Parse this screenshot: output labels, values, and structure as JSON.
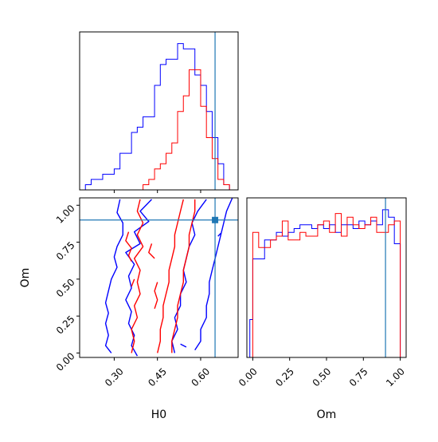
{
  "chart_data": {
    "type": "corner",
    "colors": {
      "series_a": "#0000ff",
      "series_b": "#ff0000",
      "truth": "#1f77b4"
    },
    "parameters": [
      "H0",
      "Om"
    ],
    "truth": {
      "H0": 0.65,
      "Om": 0.9
    },
    "panels": [
      {
        "id": "h0_hist",
        "type": "step-histogram",
        "xlim": [
          0.18,
          0.73
        ],
        "xticks": [
          0.3,
          0.45,
          0.6
        ],
        "truth_vline": 0.65,
        "bins": [
          0.18,
          0.2,
          0.22,
          0.24,
          0.26,
          0.28,
          0.3,
          0.32,
          0.34,
          0.36,
          0.38,
          0.4,
          0.42,
          0.44,
          0.46,
          0.48,
          0.5,
          0.52,
          0.54,
          0.56,
          0.58,
          0.6,
          0.62,
          0.64,
          0.66,
          0.68,
          0.7,
          0.72
        ],
        "series": [
          {
            "color": "blue",
            "counts": [
              0,
              1,
              2,
              2,
              3,
              3,
              4,
              7,
              7,
              11,
              12,
              14,
              14,
              20,
              24,
              25,
              25,
              28,
              27,
              27,
              22,
              20,
              15,
              10,
              5,
              1,
              0
            ]
          },
          {
            "color": "red",
            "counts": [
              0,
              0,
              0,
              0,
              0,
              0,
              0,
              0,
              0,
              0,
              0,
              1,
              2,
              4,
              5,
              7,
              9,
              15,
              18,
              23,
              23,
              16,
              10,
              6,
              2,
              1,
              0
            ]
          }
        ]
      },
      {
        "id": "om_hist",
        "type": "step-histogram",
        "xlim": [
          -0.04,
          1.04
        ],
        "xticks": [
          0.0,
          0.25,
          0.5,
          0.75,
          1.0
        ],
        "xtick_labels": [
          "0.00",
          "0.25",
          "0.50",
          "0.75",
          "1.00"
        ],
        "xlabel": "Om",
        "truth_vline": 0.9,
        "bins": [
          -0.04,
          -0.02,
          0.0,
          0.04,
          0.08,
          0.12,
          0.16,
          0.2,
          0.24,
          0.28,
          0.32,
          0.36,
          0.4,
          0.44,
          0.48,
          0.52,
          0.56,
          0.6,
          0.64,
          0.68,
          0.72,
          0.76,
          0.8,
          0.84,
          0.88,
          0.92,
          0.96,
          1.0,
          1.04
        ],
        "series": [
          {
            "color": "blue",
            "counts": [
              0,
              10,
              26,
              26,
              31,
              31,
              33,
              32,
              33,
              34,
              35,
              35,
              34,
              35,
              34,
              35,
              33,
              35,
              35,
              34,
              36,
              35,
              36,
              35,
              39,
              37,
              30,
              0
            ]
          },
          {
            "color": "red",
            "counts": [
              0,
              0,
              33,
              29,
              29,
              31,
              32,
              36,
              31,
              31,
              33,
              32,
              32,
              35,
              36,
              33,
              38,
              32,
              37,
              35,
              34,
              35,
              37,
              33,
              33,
              35,
              36,
              0
            ]
          }
        ]
      },
      {
        "id": "h0_om_contours",
        "type": "2d-contour",
        "xlim": [
          0.18,
          0.73
        ],
        "ylim": [
          -0.03,
          1.05
        ],
        "xticks": [
          0.3,
          0.45,
          0.6
        ],
        "xtick_labels": [
          "0.30",
          "0.45",
          "0.60"
        ],
        "yticks": [
          0.0,
          0.25,
          0.5,
          0.75,
          1.0
        ],
        "ytick_labels": [
          "0.00",
          "0.25",
          "0.50",
          "0.75",
          "1.00"
        ],
        "xlabel": "H0",
        "ylabel": "Om",
        "truth_point": [
          0.65,
          0.9
        ],
        "contours": [
          {
            "color": "blue",
            "points": [
              [
                0.32,
                1.04
              ],
              [
                0.31,
                0.95
              ],
              [
                0.33,
                0.88
              ],
              [
                0.33,
                0.8
              ],
              [
                0.31,
                0.72
              ],
              [
                0.3,
                0.65
              ],
              [
                0.31,
                0.58
              ],
              [
                0.29,
                0.5
              ],
              [
                0.28,
                0.42
              ],
              [
                0.27,
                0.34
              ],
              [
                0.28,
                0.27
              ],
              [
                0.27,
                0.2
              ],
              [
                0.28,
                0.12
              ],
              [
                0.27,
                0.05
              ],
              [
                0.29,
                0.0
              ]
            ]
          },
          {
            "color": "blue",
            "points": [
              [
                0.43,
                1.04
              ],
              [
                0.39,
                0.96
              ],
              [
                0.42,
                0.89
              ],
              [
                0.37,
                0.82
              ],
              [
                0.39,
                0.74
              ],
              [
                0.34,
                0.68
              ],
              [
                0.37,
                0.6
              ],
              [
                0.35,
                0.52
              ],
              [
                0.36,
                0.44
              ],
              [
                0.34,
                0.36
              ],
              [
                0.36,
                0.28
              ],
              [
                0.35,
                0.2
              ],
              [
                0.37,
                0.12
              ],
              [
                0.36,
                0.05
              ],
              [
                0.38,
                -0.02
              ]
            ]
          },
          {
            "color": "blue",
            "points": [
              [
                0.62,
                1.04
              ],
              [
                0.59,
                0.96
              ],
              [
                0.57,
                0.88
              ],
              [
                0.58,
                0.8
              ],
              [
                0.56,
                0.72
              ],
              [
                0.55,
                0.64
              ],
              [
                0.54,
                0.56
              ],
              [
                0.55,
                0.48
              ],
              [
                0.53,
                0.4
              ],
              [
                0.53,
                0.32
              ],
              [
                0.51,
                0.24
              ],
              [
                0.52,
                0.16
              ],
              [
                0.5,
                0.08
              ],
              [
                0.51,
                0.0
              ]
            ]
          },
          {
            "color": "blue",
            "points": [
              [
                0.71,
                1.05
              ],
              [
                0.69,
                0.96
              ],
              [
                0.68,
                0.88
              ],
              [
                0.67,
                0.8
              ],
              [
                0.66,
                0.72
              ],
              [
                0.65,
                0.64
              ],
              [
                0.64,
                0.56
              ],
              [
                0.63,
                0.48
              ],
              [
                0.63,
                0.4
              ],
              [
                0.62,
                0.32
              ],
              [
                0.62,
                0.24
              ],
              [
                0.6,
                0.16
              ],
              [
                0.6,
                0.08
              ],
              [
                0.58,
                0.02
              ]
            ]
          },
          {
            "color": "red",
            "points": [
              [
                0.39,
                1.04
              ],
              [
                0.38,
                0.96
              ],
              [
                0.4,
                0.88
              ],
              [
                0.38,
                0.8
              ],
              [
                0.4,
                0.72
              ],
              [
                0.37,
                0.64
              ],
              [
                0.39,
                0.56
              ],
              [
                0.38,
                0.48
              ],
              [
                0.39,
                0.4
              ],
              [
                0.37,
                0.32
              ],
              [
                0.38,
                0.24
              ],
              [
                0.36,
                0.16
              ],
              [
                0.37,
                0.08
              ],
              [
                0.36,
                0.0
              ]
            ]
          },
          {
            "color": "red",
            "points": [
              [
                0.54,
                1.04
              ],
              [
                0.53,
                0.96
              ],
              [
                0.52,
                0.88
              ],
              [
                0.51,
                0.8
              ],
              [
                0.51,
                0.72
              ],
              [
                0.5,
                0.64
              ],
              [
                0.49,
                0.56
              ],
              [
                0.49,
                0.48
              ],
              [
                0.48,
                0.4
              ],
              [
                0.47,
                0.32
              ],
              [
                0.47,
                0.24
              ],
              [
                0.46,
                0.16
              ],
              [
                0.46,
                0.08
              ],
              [
                0.45,
                0.0
              ]
            ]
          },
          {
            "color": "red",
            "points": [
              [
                0.58,
                1.04
              ],
              [
                0.58,
                0.96
              ],
              [
                0.57,
                0.88
              ],
              [
                0.56,
                0.8
              ],
              [
                0.56,
                0.72
              ],
              [
                0.55,
                0.64
              ],
              [
                0.54,
                0.56
              ],
              [
                0.54,
                0.48
              ],
              [
                0.53,
                0.4
              ],
              [
                0.52,
                0.32
              ],
              [
                0.52,
                0.24
              ],
              [
                0.51,
                0.16
              ],
              [
                0.5,
                0.08
              ],
              [
                0.5,
                0.0
              ]
            ]
          },
          {
            "color": "red",
            "points": [
              [
                0.35,
                0.82
              ],
              [
                0.34,
                0.76
              ],
              [
                0.36,
                0.71
              ],
              [
                0.35,
                0.66
              ],
              [
                0.36,
                0.62
              ]
            ]
          },
          {
            "color": "red",
            "points": [
              [
                0.43,
                0.74
              ],
              [
                0.42,
                0.68
              ],
              [
                0.44,
                0.64
              ]
            ]
          },
          {
            "color": "red",
            "points": [
              [
                0.45,
                0.48
              ],
              [
                0.44,
                0.42
              ],
              [
                0.45,
                0.36
              ],
              [
                0.44,
                0.3
              ]
            ]
          },
          {
            "color": "red",
            "points": [
              [
                0.37,
                0.5
              ],
              [
                0.36,
                0.45
              ]
            ]
          },
          {
            "color": "blue",
            "points": [
              [
                0.66,
                0.79
              ],
              [
                0.67,
                0.81
              ]
            ]
          },
          {
            "color": "blue",
            "points": [
              [
                0.53,
                0.06
              ],
              [
                0.55,
                0.04
              ]
            ]
          }
        ]
      }
    ]
  }
}
